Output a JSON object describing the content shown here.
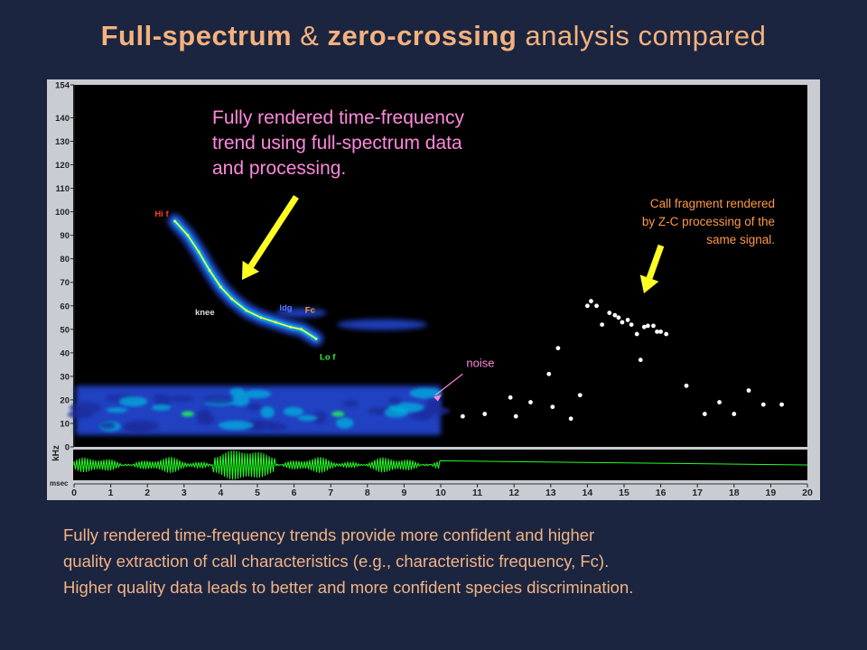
{
  "title": {
    "bold1": "Full-spectrum",
    "amp": " & ",
    "bold2": "zero-crossing",
    "rest": " analysis compared"
  },
  "caption_lines": [
    "Fully rendered time-frequency trends provide more confident and higher",
    "quality extraction of call characteristics (e.g., characteristic frequency, Fc).",
    "Higher quality data leads to better and more confident species discrimination."
  ],
  "chart_data": {
    "type": "scatter",
    "title": "",
    "xlabel": "msec",
    "ylabel": "kHz",
    "x_ticks": [
      "0",
      "1",
      "2",
      "3",
      "4",
      "5",
      "6",
      "7",
      "8",
      "9",
      "10",
      "11",
      "12",
      "13",
      "14",
      "15",
      "16",
      "17",
      "18",
      "19",
      "20"
    ],
    "y_ticks": [
      "0",
      "10",
      "20",
      "30",
      "40",
      "50",
      "60",
      "70",
      "80",
      "90",
      "100",
      "110",
      "120",
      "130",
      "140",
      "154"
    ],
    "xlim": [
      0,
      20
    ],
    "ylim": [
      0,
      154
    ],
    "colors": {
      "plot_background": "#000000",
      "spectrogram_main": "#2244cc",
      "spectrogram_mid": "#00b8e0",
      "trend_line": "#ffff44",
      "zc_points": "#ffffff",
      "waveform": "#22ff22",
      "arrow": "#ffff22",
      "annotation_pink": "#ff88dd",
      "annotation_orange": "#ff9944"
    },
    "series": [
      {
        "name": "full-spectrum trend",
        "x": [
          2.75,
          3.1,
          3.4,
          3.7,
          4.0,
          4.3,
          4.7,
          5.1,
          5.5,
          5.9,
          6.2,
          6.6
        ],
        "y": [
          96,
          90,
          83,
          75,
          68,
          63,
          58,
          55,
          53,
          51,
          50,
          46
        ]
      },
      {
        "name": "Z-C points",
        "x": [
          14.0,
          14.1,
          14.25,
          14.4,
          14.6,
          14.75,
          14.85,
          14.95,
          15.1,
          15.2,
          15.35,
          15.55,
          15.65,
          15.8,
          15.9,
          16.0,
          16.15,
          13.8,
          15.45,
          13.55,
          12.95,
          13.2,
          12.45,
          11.9,
          11.2,
          12.05,
          13.05,
          10.6,
          16.7,
          17.2,
          17.6,
          18.0,
          18.4,
          18.8,
          19.3
        ],
        "y": [
          60,
          62,
          60,
          52,
          57,
          56,
          55,
          53,
          54,
          52,
          48,
          51,
          51.5,
          51.5,
          49,
          49,
          48,
          22,
          37,
          12,
          31,
          42,
          19,
          21,
          14,
          13,
          17,
          13,
          26,
          14,
          19,
          14,
          24,
          18,
          18
        ]
      }
    ],
    "annotations": [
      {
        "text": "Hi f",
        "x": 2.2,
        "y": 98
      },
      {
        "text": "knee",
        "x": 3.3,
        "y": 56
      },
      {
        "text": "ldg",
        "x": 5.6,
        "y": 58
      },
      {
        "text": "Fc",
        "x": 6.3,
        "y": 57
      },
      {
        "text": "Lo f",
        "x": 6.7,
        "y": 37
      },
      {
        "text": "noise",
        "x": 10.7,
        "y": 34
      }
    ],
    "callouts": {
      "full_spectrum": [
        "Fully rendered time-frequency",
        "trend using full-spectrum data",
        "and processing."
      ],
      "zero_crossing": [
        "Call fragment rendered",
        "by Z-C processing of the",
        "same signal."
      ]
    }
  }
}
